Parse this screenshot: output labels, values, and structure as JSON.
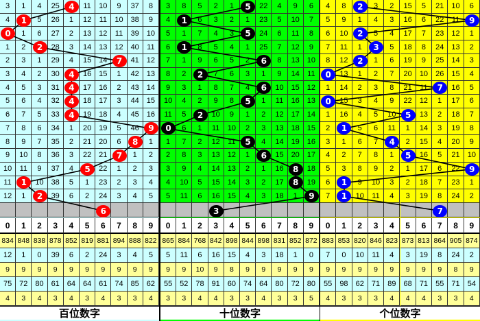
{
  "digits": [
    "0",
    "1",
    "2",
    "3",
    "4",
    "5",
    "6",
    "7",
    "8",
    "9"
  ],
  "panels": [
    {
      "title": "百位数字",
      "bg_color": "#ccffff",
      "ball_color": "#ff0000",
      "winning": [
        4,
        1,
        0,
        2,
        7,
        4,
        4,
        4,
        4,
        9,
        8,
        7,
        5,
        1,
        2
      ],
      "next": 6,
      "rows": [
        [
          3,
          1,
          4,
          25,
          4,
          11,
          10,
          9,
          37,
          8
        ],
        [
          4,
          1,
          5,
          26,
          1,
          12,
          11,
          10,
          38,
          9
        ],
        [
          0,
          1,
          6,
          27,
          2,
          13,
          12,
          11,
          39,
          10
        ],
        [
          1,
          2,
          2,
          28,
          3,
          14,
          13,
          12,
          40,
          11
        ],
        [
          2,
          3,
          1,
          29,
          4,
          15,
          14,
          7,
          41,
          12
        ],
        [
          3,
          4,
          2,
          30,
          4,
          16,
          15,
          1,
          42,
          13
        ],
        [
          4,
          5,
          3,
          31,
          4,
          17,
          16,
          2,
          43,
          14
        ],
        [
          5,
          6,
          4,
          32,
          4,
          18,
          17,
          3,
          44,
          15
        ],
        [
          6,
          7,
          5,
          33,
          4,
          19,
          18,
          4,
          45,
          16
        ],
        [
          7,
          8,
          6,
          34,
          1,
          20,
          19,
          5,
          46,
          9
        ],
        [
          8,
          9,
          7,
          35,
          2,
          21,
          20,
          6,
          8,
          1
        ],
        [
          9,
          10,
          8,
          36,
          3,
          22,
          21,
          7,
          1,
          2
        ],
        [
          10,
          11,
          9,
          37,
          4,
          5,
          22,
          1,
          2,
          3
        ],
        [
          11,
          1,
          10,
          38,
          5,
          1,
          23,
          2,
          3,
          4
        ],
        [
          12,
          1,
          2,
          39,
          6,
          2,
          24,
          3,
          4,
          5
        ]
      ],
      "stats": [
        [
          834,
          848,
          838,
          878,
          852,
          819,
          881,
          894,
          888,
          822
        ],
        [
          12,
          1,
          0,
          39,
          6,
          2,
          24,
          3,
          4,
          5
        ],
        [
          9,
          9,
          9,
          9,
          9,
          9,
          9,
          9,
          9,
          9
        ],
        [
          75,
          72,
          80,
          61,
          64,
          64,
          61,
          74,
          85,
          62
        ],
        [
          4,
          3,
          4,
          3,
          4,
          3,
          4,
          3,
          3,
          4
        ]
      ]
    },
    {
      "title": "十位数字",
      "bg_color": "#00ff00",
      "ball_color": "#000000",
      "winning": [
        5,
        1,
        5,
        1,
        6,
        2,
        6,
        5,
        2,
        0,
        5,
        6,
        8,
        8,
        9
      ],
      "next": 3,
      "rows": [
        [
          3,
          8,
          5,
          2,
          1,
          5,
          22,
          4,
          9,
          6
        ],
        [
          4,
          1,
          6,
          3,
          2,
          1,
          23,
          5,
          10,
          7
        ],
        [
          5,
          1,
          7,
          4,
          3,
          5,
          24,
          6,
          11,
          8
        ],
        [
          6,
          1,
          8,
          5,
          4,
          1,
          25,
          7,
          12,
          9
        ],
        [
          7,
          1,
          9,
          6,
          5,
          2,
          6,
          8,
          13,
          10
        ],
        [
          8,
          2,
          2,
          7,
          6,
          3,
          1,
          9,
          14,
          11
        ],
        [
          9,
          3,
          1,
          8,
          7,
          4,
          6,
          10,
          15,
          12
        ],
        [
          10,
          4,
          2,
          9,
          8,
          5,
          1,
          11,
          16,
          13
        ],
        [
          11,
          5,
          2,
          10,
          9,
          1,
          2,
          12,
          17,
          14
        ],
        [
          0,
          6,
          1,
          11,
          10,
          2,
          3,
          13,
          18,
          15
        ],
        [
          1,
          7,
          2,
          12,
          11,
          5,
          4,
          14,
          19,
          16
        ],
        [
          2,
          8,
          3,
          13,
          12,
          1,
          6,
          15,
          20,
          17
        ],
        [
          3,
          9,
          4,
          14,
          13,
          2,
          1,
          16,
          8,
          18
        ],
        [
          4,
          10,
          5,
          15,
          14,
          3,
          2,
          17,
          8,
          19
        ],
        [
          5,
          11,
          6,
          16,
          15,
          4,
          3,
          18,
          1,
          9
        ]
      ],
      "stats": [
        [
          865,
          884,
          768,
          842,
          898,
          844,
          898,
          831,
          852,
          872
        ],
        [
          5,
          11,
          6,
          16,
          15,
          4,
          3,
          18,
          1,
          0
        ],
        [
          9,
          9,
          10,
          9,
          8,
          9,
          9,
          9,
          9,
          9
        ],
        [
          55,
          52,
          78,
          91,
          60,
          74,
          64,
          80,
          72,
          80
        ],
        [
          3,
          3,
          4,
          4,
          3,
          3,
          4,
          3,
          3,
          5
        ]
      ]
    },
    {
      "title": "个位数字",
      "bg_color": "#ffff00",
      "ball_color": "#0000ff",
      "winning": [
        2,
        9,
        2,
        3,
        2,
        0,
        7,
        0,
        5,
        1,
        4,
        5,
        9,
        1,
        1
      ],
      "next": 7,
      "rows": [
        [
          4,
          8,
          2,
          3,
          2,
          15,
          5,
          21,
          10,
          6
        ],
        [
          5,
          9,
          1,
          4,
          3,
          16,
          6,
          22,
          11,
          9
        ],
        [
          6,
          10,
          2,
          5,
          4,
          17,
          7,
          23,
          12,
          1
        ],
        [
          7,
          11,
          1,
          3,
          5,
          18,
          8,
          24,
          13,
          2
        ],
        [
          8,
          12,
          2,
          1,
          6,
          19,
          9,
          25,
          14,
          3
        ],
        [
          0,
          13,
          1,
          2,
          7,
          20,
          10,
          26,
          15,
          4
        ],
        [
          1,
          14,
          2,
          3,
          8,
          21,
          11,
          7,
          16,
          5
        ],
        [
          0,
          15,
          3,
          4,
          9,
          22,
          12,
          1,
          17,
          6
        ],
        [
          1,
          16,
          4,
          5,
          10,
          5,
          13,
          2,
          18,
          7
        ],
        [
          2,
          1,
          5,
          6,
          11,
          1,
          14,
          3,
          19,
          8
        ],
        [
          3,
          1,
          6,
          7,
          4,
          2,
          15,
          4,
          20,
          9
        ],
        [
          4,
          2,
          7,
          8,
          1,
          5,
          16,
          5,
          21,
          10
        ],
        [
          5,
          3,
          8,
          9,
          2,
          1,
          17,
          6,
          22,
          9
        ],
        [
          6,
          1,
          9,
          10,
          3,
          2,
          18,
          7,
          23,
          1
        ],
        [
          7,
          1,
          10,
          11,
          4,
          3,
          19,
          8,
          24,
          2
        ]
      ],
      "stats": [
        [
          883,
          853,
          820,
          846,
          823,
          873,
          813,
          864,
          905,
          874
        ],
        [
          7,
          0,
          10,
          11,
          4,
          3,
          19,
          8,
          24,
          2
        ],
        [
          9,
          9,
          9,
          9,
          9,
          9,
          9,
          9,
          8,
          9
        ],
        [
          55,
          98,
          62,
          71,
          89,
          68,
          71,
          55,
          71,
          54
        ],
        [
          4,
          3,
          3,
          3,
          4,
          4,
          4,
          3,
          3,
          4
        ]
      ]
    }
  ]
}
